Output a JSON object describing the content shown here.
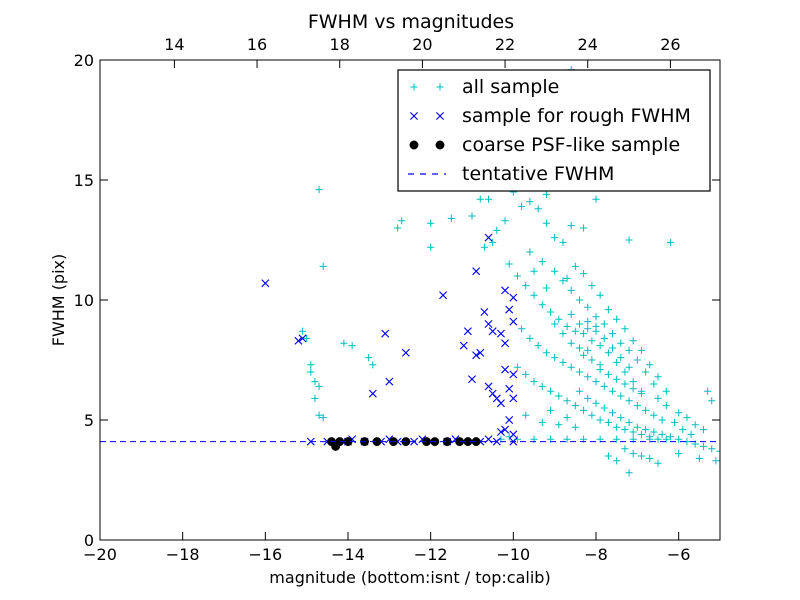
{
  "chart_data": {
    "type": "scatter",
    "title": "FWHM vs magnitudes",
    "xlabel": "magnitude (bottom:isnt / top:calib)",
    "ylabel": "FWHM (pix)",
    "xlim": [
      -20,
      -5
    ],
    "ylim": [
      0,
      20
    ],
    "top_xlim": [
      12.2,
      27.2
    ],
    "x_ticks": [
      -20,
      -18,
      -16,
      -14,
      -12,
      -10,
      -8,
      -6
    ],
    "x_tick_labels": [
      "−20",
      "−18",
      "−16",
      "−14",
      "−12",
      "−10",
      "−8",
      "−6"
    ],
    "top_x_ticks": [
      14,
      16,
      18,
      20,
      22,
      24,
      26
    ],
    "top_x_tick_labels": [
      "14",
      "16",
      "18",
      "20",
      "22",
      "24",
      "26"
    ],
    "y_ticks": [
      0,
      5,
      10,
      15,
      20
    ],
    "y_tick_labels": [
      "0",
      "5",
      "10",
      "15",
      "20"
    ],
    "grid": false,
    "legend_position": "top-right",
    "colors": {
      "all_sample": "#00bfbf",
      "rough_sample": "#0000ff",
      "psf_sample": "#000000",
      "tentative_fwhm": "#0000ff"
    },
    "series": [
      {
        "name": "all sample",
        "marker": "plus",
        "points": [
          [
            -14.7,
            14.6
          ],
          [
            -14.6,
            11.4
          ],
          [
            -15.1,
            8.7
          ],
          [
            -15.0,
            8.4
          ],
          [
            -14.9,
            7.3
          ],
          [
            -14.9,
            7.0
          ],
          [
            -14.8,
            6.6
          ],
          [
            -14.7,
            6.4
          ],
          [
            -14.8,
            5.9
          ],
          [
            -14.7,
            5.2
          ],
          [
            -14.6,
            5.1
          ],
          [
            -14.1,
            8.2
          ],
          [
            -13.9,
            8.1
          ],
          [
            -13.5,
            7.6
          ],
          [
            -13.4,
            7.3
          ],
          [
            -12.8,
            13.0
          ],
          [
            -12.7,
            13.3
          ],
          [
            -12.0,
            13.2
          ],
          [
            -12.0,
            12.2
          ],
          [
            -11.5,
            13.4
          ],
          [
            -11.0,
            13.5
          ],
          [
            -10.8,
            14.2
          ],
          [
            -10.6,
            14.2
          ],
          [
            -10.4,
            12.9
          ],
          [
            -10.2,
            13.3
          ],
          [
            -10.7,
            12.2
          ],
          [
            -10.5,
            12.4
          ],
          [
            -10.0,
            14.5
          ],
          [
            -9.8,
            13.9
          ],
          [
            -9.6,
            14.1
          ],
          [
            -9.4,
            13.8
          ],
          [
            -9.2,
            13.2
          ],
          [
            -9.0,
            12.6
          ],
          [
            -8.8,
            12.4
          ],
          [
            -8.6,
            13.1
          ],
          [
            -8.3,
            13.0
          ],
          [
            -8.0,
            14.2
          ],
          [
            -7.2,
            12.5
          ],
          [
            -6.2,
            12.4
          ],
          [
            -8.6,
            19.6
          ],
          [
            -9.2,
            14.4
          ],
          [
            -8.1,
            16.6
          ],
          [
            -10.1,
            11.5
          ],
          [
            -9.9,
            11.0
          ],
          [
            -9.7,
            10.6
          ],
          [
            -9.5,
            10.2
          ],
          [
            -9.3,
            9.8
          ],
          [
            -9.1,
            9.5
          ],
          [
            -8.9,
            9.2
          ],
          [
            -8.7,
            8.9
          ],
          [
            -8.5,
            8.7
          ],
          [
            -8.3,
            8.6
          ],
          [
            -8.1,
            8.3
          ],
          [
            -7.9,
            8.1
          ],
          [
            -7.7,
            7.8
          ],
          [
            -7.5,
            7.4
          ],
          [
            -7.3,
            7.0
          ],
          [
            -7.1,
            6.6
          ],
          [
            -9.8,
            8.8
          ],
          [
            -9.6,
            8.4
          ],
          [
            -9.4,
            8.1
          ],
          [
            -9.2,
            7.8
          ],
          [
            -9.0,
            7.6
          ],
          [
            -8.8,
            7.4
          ],
          [
            -8.6,
            7.2
          ],
          [
            -8.4,
            7.0
          ],
          [
            -8.2,
            6.8
          ],
          [
            -8.0,
            6.6
          ],
          [
            -7.8,
            6.4
          ],
          [
            -7.6,
            6.2
          ],
          [
            -7.4,
            6.0
          ],
          [
            -7.2,
            5.8
          ],
          [
            -7.0,
            5.6
          ],
          [
            -6.8,
            5.4
          ],
          [
            -6.6,
            5.2
          ],
          [
            -6.4,
            5.0
          ],
          [
            -9.9,
            7.2
          ],
          [
            -9.7,
            6.9
          ],
          [
            -9.5,
            6.6
          ],
          [
            -9.3,
            6.4
          ],
          [
            -9.1,
            6.2
          ],
          [
            -8.9,
            6.0
          ],
          [
            -8.7,
            5.8
          ],
          [
            -8.5,
            5.6
          ],
          [
            -8.3,
            5.4
          ],
          [
            -8.1,
            5.2
          ],
          [
            -7.9,
            5.0
          ],
          [
            -7.7,
            4.9
          ],
          [
            -7.5,
            4.7
          ],
          [
            -7.3,
            4.6
          ],
          [
            -7.1,
            4.5
          ],
          [
            -6.9,
            4.4
          ],
          [
            -6.7,
            4.3
          ],
          [
            -6.5,
            4.2
          ],
          [
            -8.8,
            10.8
          ],
          [
            -8.6,
            10.4
          ],
          [
            -8.4,
            10.0
          ],
          [
            -8.2,
            9.7
          ],
          [
            -8.0,
            9.3
          ],
          [
            -7.8,
            9.0
          ],
          [
            -7.6,
            8.6
          ],
          [
            -7.4,
            8.2
          ],
          [
            -7.2,
            7.9
          ],
          [
            -7.0,
            7.5
          ],
          [
            -6.8,
            7.0
          ],
          [
            -6.6,
            6.5
          ],
          [
            -8.5,
            11.4
          ],
          [
            -8.3,
            11.1
          ],
          [
            -8.1,
            10.6
          ],
          [
            -7.9,
            10.2
          ],
          [
            -7.7,
            9.6
          ],
          [
            -7.5,
            9.2
          ],
          [
            -7.3,
            8.8
          ],
          [
            -7.1,
            8.3
          ],
          [
            -6.9,
            7.9
          ],
          [
            -6.7,
            7.3
          ],
          [
            -6.5,
            6.8
          ],
          [
            -6.3,
            6.2
          ],
          [
            -8.2,
            9.1
          ],
          [
            -8.0,
            8.7
          ],
          [
            -7.8,
            8.4
          ],
          [
            -7.6,
            8.0
          ],
          [
            -7.4,
            7.6
          ],
          [
            -7.2,
            7.2
          ],
          [
            -8.4,
            6.2
          ],
          [
            -8.2,
            5.9
          ],
          [
            -8.0,
            5.7
          ],
          [
            -7.8,
            5.5
          ],
          [
            -7.6,
            5.3
          ],
          [
            -7.4,
            5.1
          ],
          [
            -7.2,
            4.9
          ],
          [
            -7.0,
            4.7
          ],
          [
            -6.8,
            4.6
          ],
          [
            -6.6,
            4.5
          ],
          [
            -6.4,
            4.4
          ],
          [
            -6.2,
            4.3
          ],
          [
            -6.0,
            4.2
          ],
          [
            -5.8,
            4.1
          ],
          [
            -5.6,
            4.0
          ],
          [
            -5.4,
            3.9
          ],
          [
            -5.2,
            3.8
          ],
          [
            -5.0,
            3.7
          ],
          [
            -7.3,
            3.8
          ],
          [
            -7.1,
            3.6
          ],
          [
            -6.9,
            3.5
          ],
          [
            -6.7,
            3.4
          ],
          [
            -7.5,
            3.3
          ],
          [
            -7.7,
            3.5
          ],
          [
            -7.2,
            2.8
          ],
          [
            -6.5,
            3.2
          ],
          [
            -6.0,
            3.6
          ],
          [
            -5.5,
            3.4
          ],
          [
            -5.1,
            3.3
          ],
          [
            -5.3,
            6.2
          ],
          [
            -5.2,
            5.8
          ],
          [
            -5.6,
            4.8
          ],
          [
            -5.4,
            4.6
          ],
          [
            -5.8,
            5.1
          ],
          [
            -6.0,
            5.3
          ],
          [
            -9.6,
            12.0
          ],
          [
            -9.3,
            11.6
          ],
          [
            -9.0,
            11.2
          ],
          [
            -8.7,
            10.9
          ],
          [
            -9.5,
            11.2
          ],
          [
            -9.2,
            10.5
          ],
          [
            -10.3,
            4.2
          ],
          [
            -10.1,
            4.3
          ],
          [
            -9.9,
            4.2
          ],
          [
            -9.5,
            4.2
          ],
          [
            -9.1,
            4.2
          ],
          [
            -8.7,
            4.2
          ],
          [
            -8.3,
            4.2
          ],
          [
            -7.9,
            4.2
          ],
          [
            -7.5,
            4.2
          ],
          [
            -7.1,
            4.2
          ],
          [
            -6.7,
            4.2
          ],
          [
            -6.3,
            4.2
          ],
          [
            -9.7,
            5.2
          ],
          [
            -9.3,
            4.9
          ],
          [
            -8.9,
            4.8
          ],
          [
            -8.5,
            4.7
          ],
          [
            -9.1,
            5.4
          ],
          [
            -8.7,
            5.1
          ],
          [
            -6.1,
            4.9
          ],
          [
            -5.9,
            4.6
          ],
          [
            -5.7,
            4.4
          ],
          [
            -6.3,
            5.6
          ],
          [
            -6.5,
            5.9
          ],
          [
            -6.9,
            6.2
          ],
          [
            -7.9,
            7.1
          ],
          [
            -7.7,
            6.9
          ],
          [
            -7.5,
            6.7
          ],
          [
            -7.3,
            6.5
          ],
          [
            -7.1,
            6.3
          ],
          [
            -6.9,
            6.1
          ],
          [
            -8.3,
            7.7
          ],
          [
            -8.1,
            7.5
          ],
          [
            -7.9,
            7.3
          ],
          [
            -8.6,
            8.2
          ],
          [
            -8.4,
            8.0
          ],
          [
            -8.2,
            7.9
          ],
          [
            -9.0,
            9.0
          ],
          [
            -8.8,
            8.6
          ],
          [
            -8.6,
            9.4
          ],
          [
            -8.4,
            9.0
          ],
          [
            -8.2,
            8.8
          ],
          [
            -8.0,
            8.9
          ]
        ]
      },
      {
        "name": "sample for rough FWHM",
        "marker": "x",
        "points": [
          [
            -16.0,
            10.7
          ],
          [
            -15.2,
            8.3
          ],
          [
            -15.1,
            8.4
          ],
          [
            -13.1,
            8.6
          ],
          [
            -13.0,
            6.6
          ],
          [
            -13.4,
            6.1
          ],
          [
            -12.6,
            7.8
          ],
          [
            -11.7,
            10.2
          ],
          [
            -11.2,
            8.1
          ],
          [
            -11.1,
            8.7
          ],
          [
            -10.9,
            7.7
          ],
          [
            -10.8,
            7.8
          ],
          [
            -10.9,
            11.2
          ],
          [
            -10.6,
            12.6
          ],
          [
            -10.2,
            10.4
          ],
          [
            -10.0,
            10.1
          ],
          [
            -11.0,
            6.7
          ],
          [
            -10.6,
            6.4
          ],
          [
            -10.5,
            6.1
          ],
          [
            -10.4,
            5.9
          ],
          [
            -10.3,
            5.7
          ],
          [
            -10.1,
            9.6
          ],
          [
            -10.0,
            9.1
          ],
          [
            -10.3,
            8.6
          ],
          [
            -10.2,
            8.2
          ],
          [
            -10.7,
            9.5
          ],
          [
            -10.6,
            9.0
          ],
          [
            -10.5,
            8.7
          ],
          [
            -10.2,
            7.1
          ],
          [
            -10.0,
            6.9
          ],
          [
            -10.1,
            6.3
          ],
          [
            -10.0,
            5.9
          ],
          [
            -10.1,
            5.0
          ],
          [
            -10.2,
            4.6
          ],
          [
            -10.3,
            4.5
          ],
          [
            -10.0,
            4.4
          ],
          [
            -14.9,
            4.1
          ],
          [
            -14.5,
            4.1
          ],
          [
            -14.0,
            4.1
          ],
          [
            -13.6,
            4.1
          ],
          [
            -13.2,
            4.1
          ],
          [
            -12.8,
            4.1
          ],
          [
            -12.4,
            4.1
          ],
          [
            -12.0,
            4.1
          ],
          [
            -11.6,
            4.1
          ],
          [
            -11.2,
            4.1
          ],
          [
            -10.8,
            4.1
          ],
          [
            -10.4,
            4.1
          ],
          [
            -10.0,
            4.1
          ],
          [
            -13.9,
            4.2
          ],
          [
            -13.0,
            4.2
          ],
          [
            -12.2,
            4.2
          ],
          [
            -11.4,
            4.2
          ],
          [
            -10.6,
            4.2
          ]
        ]
      },
      {
        "name": "coarse PSF-like sample",
        "marker": "circle",
        "points": [
          [
            -14.4,
            4.1
          ],
          [
            -14.3,
            3.9
          ],
          [
            -14.2,
            4.1
          ],
          [
            -14.0,
            4.1
          ],
          [
            -13.6,
            4.1
          ],
          [
            -13.3,
            4.1
          ],
          [
            -12.9,
            4.1
          ],
          [
            -12.6,
            4.1
          ],
          [
            -12.1,
            4.1
          ],
          [
            -11.9,
            4.1
          ],
          [
            -11.6,
            4.1
          ],
          [
            -11.3,
            4.1
          ],
          [
            -11.1,
            4.1
          ],
          [
            -10.9,
            4.1
          ]
        ]
      }
    ],
    "reference_lines": [
      {
        "name": "tentative FWHM",
        "style": "dashed",
        "y": 4.1
      }
    ]
  }
}
